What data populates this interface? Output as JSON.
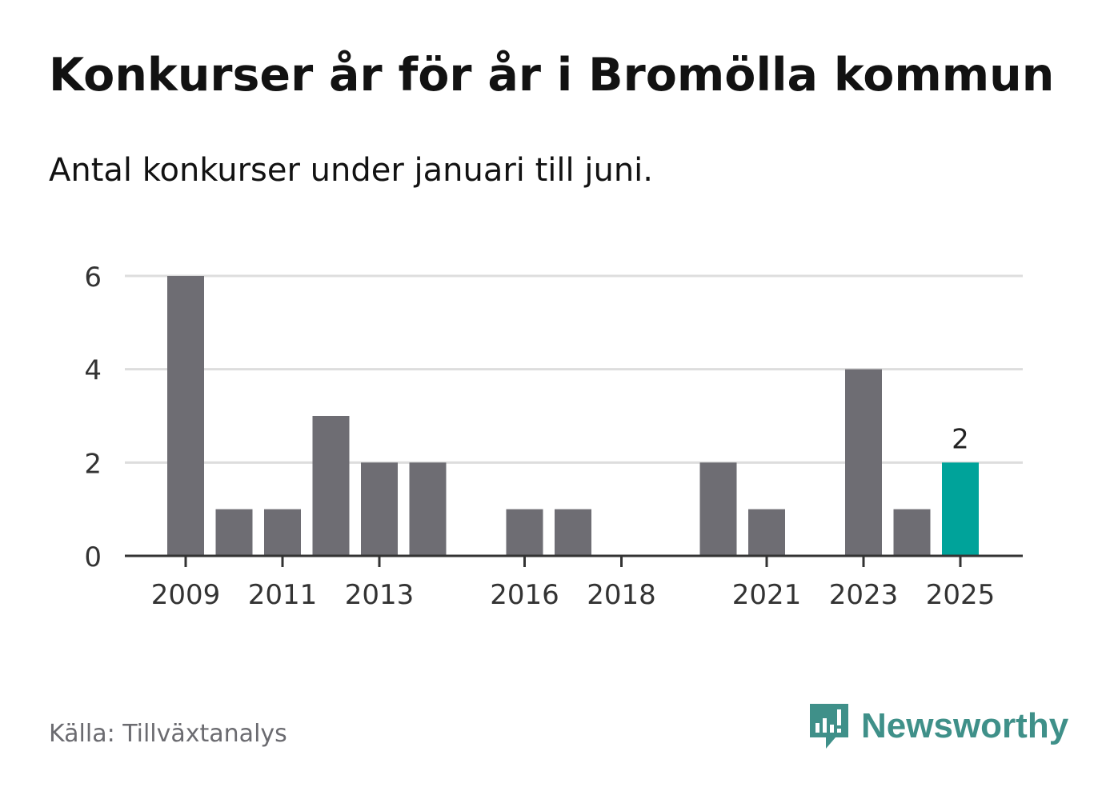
{
  "title": "Konkurser år för år i Bromölla kommun",
  "subtitle": "Antal konkurser under januari till juni.",
  "source": "Källa: Tillväxtanalys",
  "brand": {
    "name": "Newsworthy",
    "icon": "newsworthy-logo-icon",
    "color": "#3f9089"
  },
  "chart_data": {
    "type": "bar",
    "title": "",
    "xlabel": "",
    "ylabel": "",
    "categories": [
      "2009",
      "2010",
      "2011",
      "2012",
      "2013",
      "2014",
      "2015",
      "2016",
      "2017",
      "2018",
      "2019",
      "2020",
      "2021",
      "2022",
      "2023",
      "2024",
      "2025"
    ],
    "values": [
      6,
      1,
      1,
      3,
      2,
      2,
      0,
      1,
      1,
      0,
      0,
      2,
      1,
      0,
      4,
      1,
      2
    ],
    "x_tick_labels": [
      "2009",
      "2011",
      "2013",
      "2016",
      "2018",
      "2021",
      "2023",
      "2025"
    ],
    "y_ticks": [
      "0",
      "2",
      "4",
      "6"
    ],
    "ylim": [
      0,
      6
    ],
    "grid": true,
    "bar_color": "#6e6d73",
    "highlight_color": "#00a39a",
    "highlight_index": 16,
    "highlight_label": "2"
  }
}
